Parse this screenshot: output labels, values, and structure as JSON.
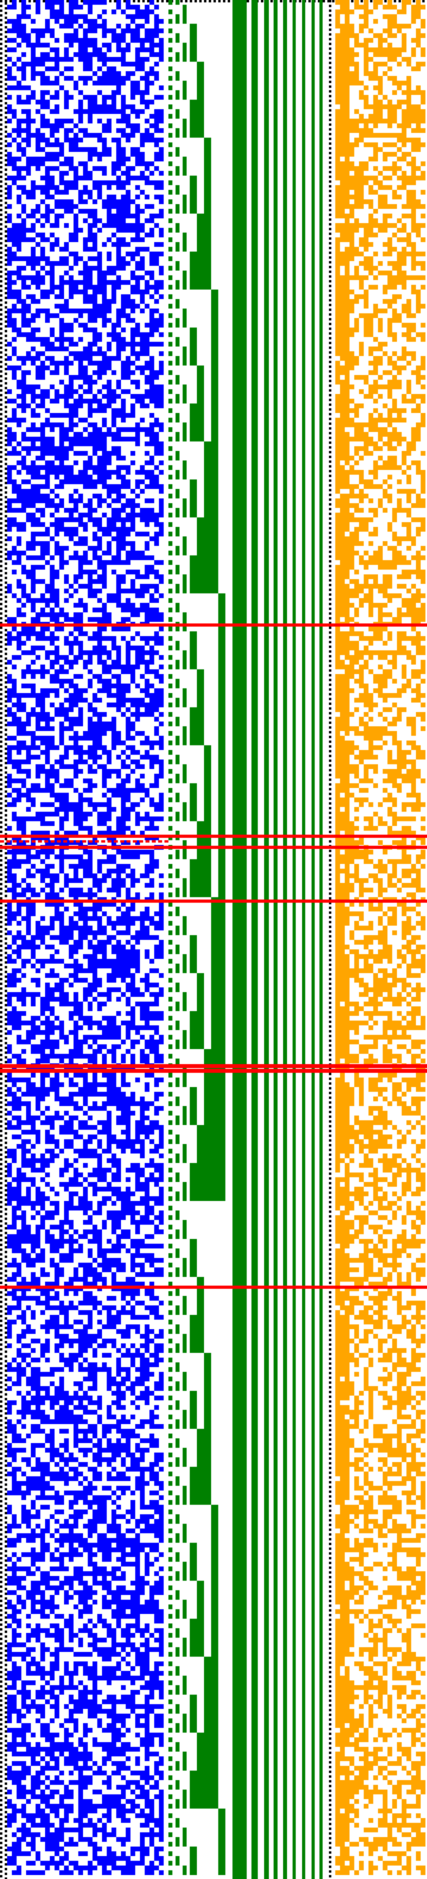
{
  "visualization": {
    "kind": "binary bit-matrix pattern",
    "regions": [
      {
        "name": "random-bit-field",
        "color": "#0000ff"
      },
      {
        "name": "counter-staircase",
        "color": "#008000"
      },
      {
        "name": "solid-bars",
        "color": "#008000"
      },
      {
        "name": "side-bit-field",
        "color": "#ffa500"
      }
    ],
    "separator_markers": {
      "color": "#ff0000",
      "count": 8
    },
    "border_markers": {
      "style": "dotted",
      "color": "#000000"
    },
    "background": "#ffffff"
  }
}
